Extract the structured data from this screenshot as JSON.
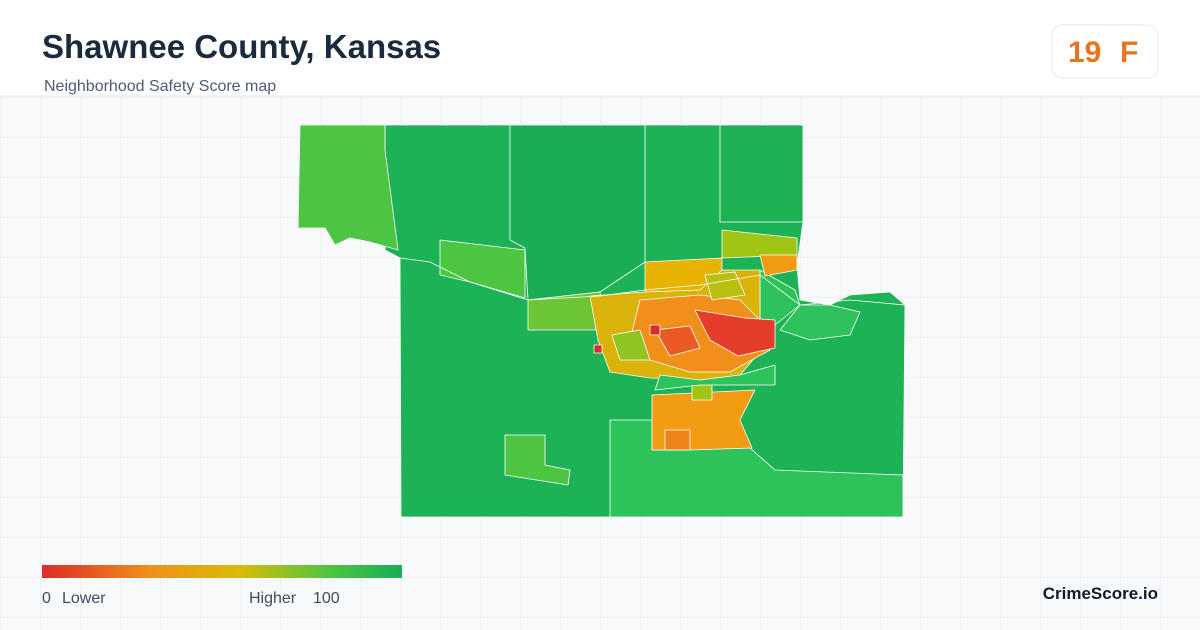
{
  "header": {
    "title": "Shawnee County, Kansas",
    "subtitle": "Neighborhood Safety Score map"
  },
  "score": {
    "value": 19,
    "grade": "F"
  },
  "legend": {
    "min": 0,
    "min_label": "Lower",
    "max_label": "Higher",
    "max": 100
  },
  "brand": "CrimeScore.io"
}
